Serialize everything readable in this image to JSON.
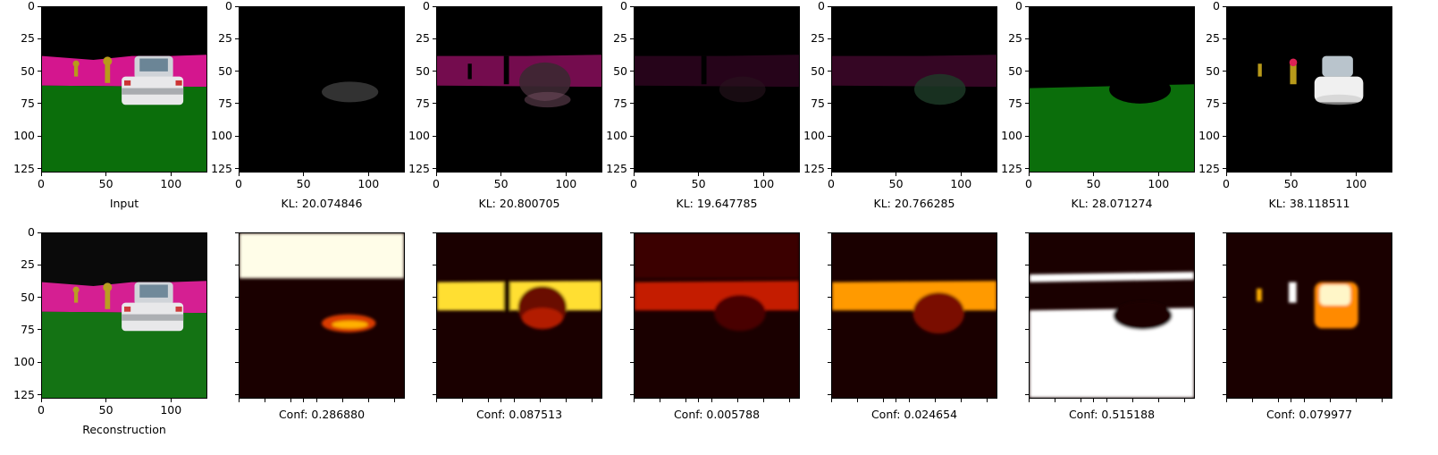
{
  "figure": {
    "top_row": {
      "captions": [
        "Input",
        "KL: 20.074846",
        "KL: 20.800705",
        "KL: 19.647785",
        "KL: 20.766285",
        "KL: 28.071274",
        "KL: 38.118511"
      ]
    },
    "bottom_row": {
      "captions": [
        "Reconstruction",
        "Conf: 0.286880",
        "Conf: 0.087513",
        "Conf: 0.005788",
        "Conf: 0.024654",
        "Conf: 0.515188",
        "Conf: 0.079977"
      ]
    },
    "axis": {
      "x_ticks": [
        "0",
        "50",
        "100"
      ],
      "y_ticks": [
        "0",
        "25",
        "50",
        "75",
        "100",
        "125"
      ]
    },
    "colors": {
      "sky": "#000000",
      "wall": "#d4168e",
      "ground": "#0b6e0b",
      "key": "#b89a1a",
      "car": "#e8e8ea",
      "heat_low": "#1a0000",
      "heat_high": "#ffffff"
    }
  }
}
